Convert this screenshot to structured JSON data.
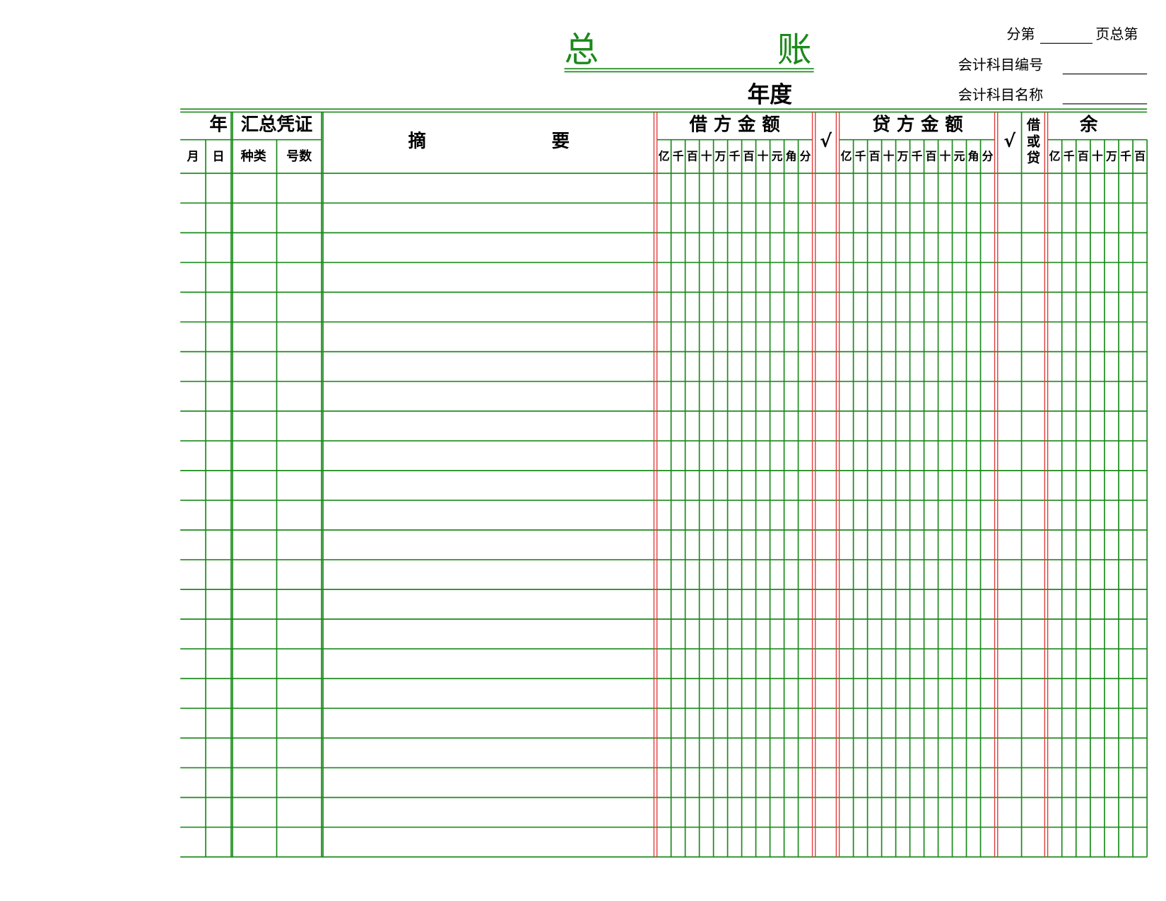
{
  "header": {
    "title_left": "总",
    "title_right": "账",
    "year_label": "年度",
    "page_prefix": "分第",
    "page_middle": "页总第",
    "account_code_label": "会计科目编号",
    "account_name_label": "会计科目名称"
  },
  "table": {
    "year": "年",
    "voucher": "汇总凭证",
    "month": "月",
    "day": "日",
    "kind": "种类",
    "number": "号数",
    "summary": [
      "摘",
      "要"
    ],
    "debit": "借 方 金 额",
    "check": "√",
    "credit": "贷 方 金 额",
    "check2": "√",
    "direction": [
      "借",
      "或",
      "贷"
    ],
    "balance": "余",
    "debit_units": [
      "亿",
      "千",
      "百",
      "十",
      "万",
      "千",
      "百",
      "十",
      "元",
      "角",
      "分"
    ],
    "credit_units": [
      "亿",
      "千",
      "百",
      "十",
      "万",
      "千",
      "百",
      "十",
      "元",
      "角",
      "分"
    ],
    "balance_units": [
      "亿",
      "千",
      "百",
      "十",
      "万",
      "千",
      "百"
    ]
  }
}
